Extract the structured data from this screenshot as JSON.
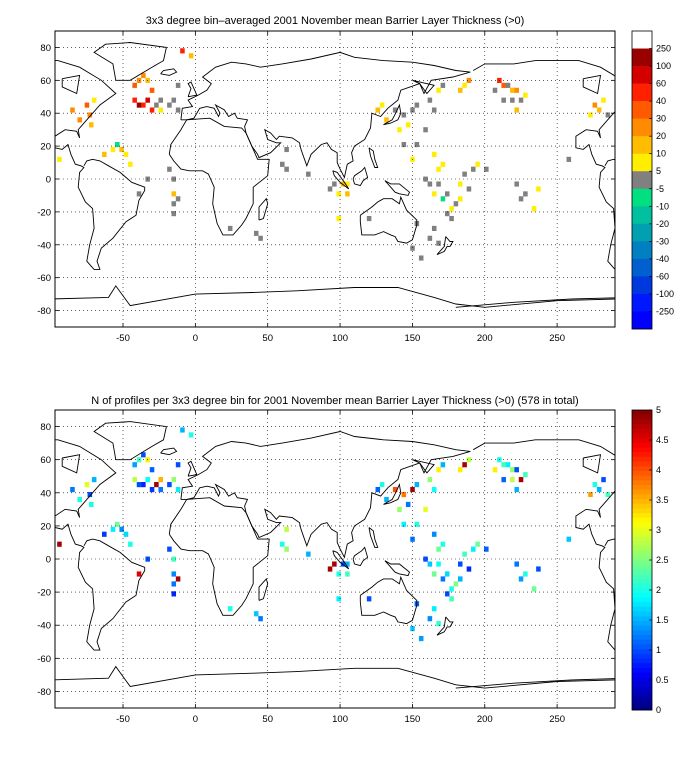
{
  "chart_data": [
    {
      "type": "heatmap",
      "title": "3x3 degree bin–averaged 2001 November mean Barrier Layer Thickness (>0)",
      "xlabel": "",
      "ylabel": "",
      "xlim": [
        -97,
        290
      ],
      "ylim": [
        -90,
        90
      ],
      "xticks": [
        "-50",
        "0",
        "50",
        "100",
        "150",
        "200",
        "250"
      ],
      "yticks": [
        "80",
        "60",
        "40",
        "20",
        "0",
        "-20",
        "-40",
        "-60",
        "-80"
      ],
      "grid": true,
      "colorbar": {
        "labels": [
          "250",
          "100",
          "60",
          "40",
          "30",
          "20",
          "10",
          "5",
          "-5",
          "-10",
          "-20",
          "-30",
          "-40",
          "-60",
          "-100",
          "-250"
        ],
        "colors": [
          "#ffffff",
          "#990000",
          "#d40000",
          "#ff2000",
          "#ff5a00",
          "#ff8c00",
          "#ffbc00",
          "#ffee00",
          "#808080",
          "#00e080",
          "#00c0a0",
          "#00a0b0",
          "#0080c0",
          "#0060d0",
          "#0038e0",
          "#0018ff",
          "#0000ff"
        ]
      },
      "cells": [
        [
          -94,
          12,
          7
        ],
        [
          -85,
          42,
          5
        ],
        [
          -80,
          36,
          5
        ],
        [
          -75,
          45,
          4
        ],
        [
          -73,
          39,
          5
        ],
        [
          -72,
          33,
          6
        ],
        [
          -70,
          48,
          7
        ],
        [
          -63,
          15,
          6
        ],
        [
          -57,
          18,
          7
        ],
        [
          -54,
          21,
          9
        ],
        [
          -51,
          18,
          6
        ],
        [
          -48,
          15,
          7
        ],
        [
          -45,
          9,
          7
        ],
        [
          -42,
          57,
          4
        ],
        [
          -39,
          60,
          5
        ],
        [
          -36,
          63,
          5
        ],
        [
          -33,
          60,
          6
        ],
        [
          -30,
          54,
          4
        ],
        [
          -36,
          45,
          3
        ],
        [
          -33,
          48,
          2
        ],
        [
          -30,
          42,
          3
        ],
        [
          -39,
          45,
          1
        ],
        [
          -42,
          48,
          3
        ],
        [
          -27,
          45,
          8
        ],
        [
          -24,
          42,
          7
        ],
        [
          -24,
          48,
          8
        ],
        [
          -18,
          45,
          8
        ],
        [
          -12,
          42,
          8
        ],
        [
          -15,
          48,
          8
        ],
        [
          -12,
          57,
          8
        ],
        [
          -9,
          78,
          3
        ],
        [
          -3,
          75,
          6
        ],
        [
          -18,
          6,
          8
        ],
        [
          -15,
          0,
          8
        ],
        [
          -39,
          -9,
          8
        ],
        [
          -33,
          0,
          8
        ],
        [
          -12,
          -12,
          8
        ],
        [
          -15,
          -15,
          8
        ],
        [
          -15,
          -21,
          8
        ],
        [
          -15,
          -9,
          6
        ],
        [
          24,
          -30,
          8
        ],
        [
          42,
          -33,
          8
        ],
        [
          45,
          -36,
          8
        ],
        [
          63,
          18,
          8
        ],
        [
          60,
          9,
          8
        ],
        [
          63,
          6,
          8
        ],
        [
          78,
          3,
          8
        ],
        [
          93,
          -6,
          8
        ],
        [
          96,
          -3,
          8
        ],
        [
          99,
          -9,
          7
        ],
        [
          102,
          -3,
          6
        ],
        [
          105,
          -3,
          7
        ],
        [
          105,
          -9,
          6
        ],
        [
          99,
          -24,
          7
        ],
        [
          120,
          -24,
          8
        ],
        [
          126,
          42,
          6
        ],
        [
          129,
          45,
          7
        ],
        [
          132,
          36,
          6
        ],
        [
          138,
          42,
          8
        ],
        [
          141,
          30,
          7
        ],
        [
          144,
          39,
          8
        ],
        [
          147,
          33,
          7
        ],
        [
          150,
          42,
          8
        ],
        [
          153,
          45,
          8
        ],
        [
          159,
          30,
          8
        ],
        [
          162,
          48,
          8
        ],
        [
          165,
          42,
          8
        ],
        [
          168,
          54,
          7
        ],
        [
          171,
          57,
          8
        ],
        [
          144,
          21,
          8
        ],
        [
          150,
          12,
          7
        ],
        [
          153,
          21,
          8
        ],
        [
          165,
          15,
          7
        ],
        [
          168,
          6,
          7
        ],
        [
          171,
          9,
          7
        ],
        [
          159,
          0,
          8
        ],
        [
          162,
          -3,
          8
        ],
        [
          165,
          -9,
          7
        ],
        [
          168,
          -3,
          8
        ],
        [
          171,
          -12,
          9
        ],
        [
          174,
          -9,
          8
        ],
        [
          177,
          -18,
          7
        ],
        [
          180,
          -15,
          8
        ],
        [
          174,
          -21,
          8
        ],
        [
          177,
          -24,
          8
        ],
        [
          183,
          -3,
          7
        ],
        [
          183,
          -12,
          7
        ],
        [
          186,
          3,
          8
        ],
        [
          189,
          -6,
          8
        ],
        [
          192,
          6,
          8
        ],
        [
          195,
          9,
          7
        ],
        [
          201,
          6,
          8
        ],
        [
          183,
          54,
          6
        ],
        [
          186,
          57,
          7
        ],
        [
          189,
          60,
          5
        ],
        [
          210,
          60,
          3
        ],
        [
          213,
          57,
          4
        ],
        [
          216,
          57,
          8
        ],
        [
          219,
          54,
          6
        ],
        [
          222,
          54,
          5
        ],
        [
          225,
          48,
          8
        ],
        [
          228,
          51,
          7
        ],
        [
          222,
          42,
          6
        ],
        [
          213,
          48,
          8
        ],
        [
          219,
          48,
          8
        ],
        [
          207,
          54,
          8
        ],
        [
          222,
          -3,
          8
        ],
        [
          225,
          -12,
          8
        ],
        [
          228,
          -9,
          8
        ],
        [
          234,
          -18,
          7
        ],
        [
          237,
          -6,
          7
        ],
        [
          273,
          39,
          7
        ],
        [
          276,
          45,
          5
        ],
        [
          279,
          42,
          6
        ],
        [
          282,
          48,
          7
        ],
        [
          285,
          39,
          8
        ],
        [
          258,
          12,
          8
        ],
        [
          162,
          -36,
          8
        ],
        [
          165,
          -30,
          8
        ],
        [
          168,
          -39,
          8
        ],
        [
          156,
          -48,
          8
        ],
        [
          150,
          -42,
          8
        ],
        [
          153,
          -27,
          8
        ]
      ]
    },
    {
      "type": "heatmap",
      "title": "N of profiles per 3x3 degree bin for 2001 November mean Barrier Layer Thickness (>0) (578 in total)",
      "xlabel": "",
      "ylabel": "",
      "xlim": [
        -97,
        290
      ],
      "ylim": [
        -90,
        90
      ],
      "xticks": [
        "-50",
        "0",
        "50",
        "100",
        "150",
        "200",
        "250"
      ],
      "yticks": [
        "80",
        "60",
        "40",
        "20",
        "0",
        "-20",
        "-40",
        "-60",
        "-80"
      ],
      "grid": true,
      "colorbar": {
        "labels": [
          "5",
          "4.5",
          "4",
          "3.5",
          "3",
          "2.5",
          "2",
          "1.5",
          "1",
          "0.5",
          "0"
        ],
        "vmin": 0,
        "vmax": 5
      },
      "cells": [
        [
          -94,
          9,
          4.8
        ],
        [
          -85,
          42,
          1.2
        ],
        [
          -80,
          36,
          2.0
        ],
        [
          -75,
          45,
          3.0
        ],
        [
          -73,
          39,
          1.0
        ],
        [
          -72,
          33,
          2.0
        ],
        [
          -70,
          48,
          1.5
        ],
        [
          -63,
          15,
          0.9
        ],
        [
          -57,
          18,
          1.8
        ],
        [
          -54,
          21,
          2.4
        ],
        [
          -51,
          18,
          1.3
        ],
        [
          -48,
          15,
          1.7
        ],
        [
          -45,
          9,
          2.0
        ],
        [
          -42,
          57,
          1.4
        ],
        [
          -39,
          60,
          2.2
        ],
        [
          -36,
          63,
          1.0
        ],
        [
          -33,
          60,
          3.2
        ],
        [
          -30,
          54,
          1.1
        ],
        [
          -36,
          45,
          0.8
        ],
        [
          -33,
          48,
          1.9
        ],
        [
          -30,
          42,
          0.9
        ],
        [
          -39,
          45,
          1.0
        ],
        [
          -42,
          48,
          2.8
        ],
        [
          -27,
          45,
          4.8
        ],
        [
          -24,
          42,
          1.2
        ],
        [
          -24,
          48,
          3.5
        ],
        [
          -18,
          45,
          1.0
        ],
        [
          -12,
          42,
          1.8
        ],
        [
          -15,
          48,
          2.6
        ],
        [
          -12,
          57,
          1.0
        ],
        [
          -9,
          78,
          1.5
        ],
        [
          -3,
          75,
          2.0
        ],
        [
          -18,
          6,
          1.0
        ],
        [
          -15,
          0,
          2.2
        ],
        [
          -39,
          -9,
          4.5
        ],
        [
          -33,
          0,
          1.0
        ],
        [
          -12,
          -12,
          4.8
        ],
        [
          -15,
          -15,
          1.2
        ],
        [
          -15,
          -21,
          0.8
        ],
        [
          -15,
          -9,
          1.3
        ],
        [
          24,
          -30,
          2.0
        ],
        [
          42,
          -33,
          1.6
        ],
        [
          45,
          -36,
          1.2
        ],
        [
          63,
          18,
          2.8
        ],
        [
          60,
          9,
          2.0
        ],
        [
          63,
          6,
          2.6
        ],
        [
          78,
          3,
          1.5
        ],
        [
          93,
          -6,
          4.8
        ],
        [
          96,
          -3,
          4.8
        ],
        [
          99,
          -9,
          2.0
        ],
        [
          102,
          -3,
          1.0
        ],
        [
          105,
          -3,
          1.5
        ],
        [
          105,
          -9,
          2.2
        ],
        [
          99,
          -24,
          1.8
        ],
        [
          120,
          -24,
          1.0
        ],
        [
          126,
          42,
          1.1
        ],
        [
          129,
          45,
          2.0
        ],
        [
          132,
          36,
          1.5
        ],
        [
          138,
          42,
          4.0
        ],
        [
          141,
          30,
          2.6
        ],
        [
          144,
          39,
          3.8
        ],
        [
          147,
          33,
          1.2
        ],
        [
          150,
          42,
          4.8
        ],
        [
          153,
          45,
          1.5
        ],
        [
          159,
          30,
          3.0
        ],
        [
          162,
          48,
          2.6
        ],
        [
          165,
          42,
          1.9
        ],
        [
          168,
          54,
          3.2
        ],
        [
          171,
          57,
          1.5
        ],
        [
          144,
          21,
          1.8
        ],
        [
          150,
          12,
          1.2
        ],
        [
          153,
          21,
          2.0
        ],
        [
          165,
          15,
          1.3
        ],
        [
          168,
          6,
          2.4
        ],
        [
          171,
          9,
          2.0
        ],
        [
          159,
          0,
          1.0
        ],
        [
          162,
          -3,
          1.6
        ],
        [
          165,
          -9,
          2.4
        ],
        [
          168,
          -3,
          1.9
        ],
        [
          171,
          -12,
          1.2
        ],
        [
          174,
          -9,
          1.7
        ],
        [
          177,
          -18,
          2.0
        ],
        [
          180,
          -15,
          2.5
        ],
        [
          174,
          -21,
          1.0
        ],
        [
          177,
          -24,
          2.2
        ],
        [
          183,
          -3,
          1.0
        ],
        [
          183,
          -12,
          1.5
        ],
        [
          186,
          3,
          2.2
        ],
        [
          189,
          -6,
          0.8
        ],
        [
          192,
          6,
          1.8
        ],
        [
          195,
          9,
          2.4
        ],
        [
          201,
          6,
          1.1
        ],
        [
          183,
          54,
          3.2
        ],
        [
          186,
          57,
          4.8
        ],
        [
          189,
          60,
          2.8
        ],
        [
          210,
          60,
          2.0
        ],
        [
          213,
          57,
          2.2
        ],
        [
          216,
          57,
          1.8
        ],
        [
          219,
          54,
          2.6
        ],
        [
          222,
          54,
          1.0
        ],
        [
          225,
          48,
          4.8
        ],
        [
          228,
          51,
          2.2
        ],
        [
          222,
          42,
          1.5
        ],
        [
          213,
          48,
          1.1
        ],
        [
          219,
          48,
          2.8
        ],
        [
          207,
          54,
          3.2
        ],
        [
          222,
          -3,
          1.2
        ],
        [
          225,
          -12,
          1.4
        ],
        [
          228,
          -9,
          2.0
        ],
        [
          234,
          -18,
          2.4
        ],
        [
          237,
          -6,
          1.0
        ],
        [
          273,
          39,
          3.6
        ],
        [
          276,
          45,
          2.0
        ],
        [
          279,
          42,
          1.5
        ],
        [
          282,
          48,
          1.0
        ],
        [
          285,
          39,
          2.2
        ],
        [
          258,
          12,
          1.6
        ],
        [
          162,
          -36,
          1.3
        ],
        [
          165,
          -30,
          1.8
        ],
        [
          168,
          -39,
          2.1
        ],
        [
          156,
          -48,
          1.4
        ],
        [
          150,
          -42,
          1.6
        ],
        [
          153,
          -27,
          1.1
        ]
      ]
    }
  ]
}
